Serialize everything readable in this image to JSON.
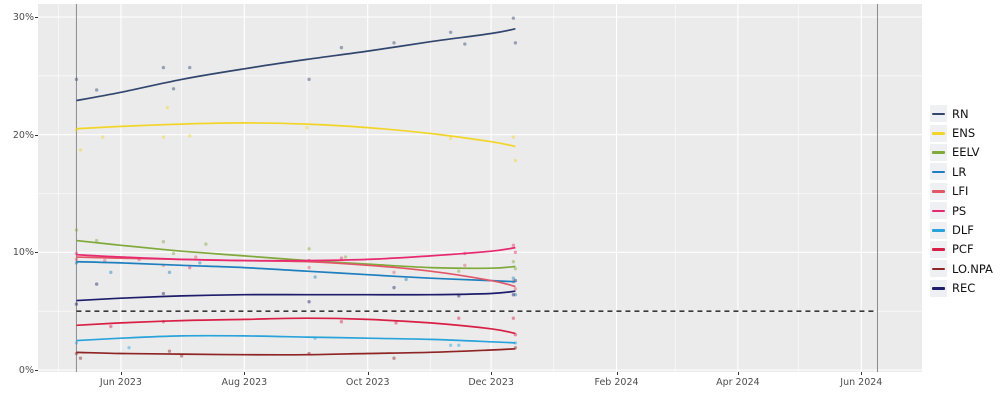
{
  "chart_data": {
    "type": "line",
    "title": "",
    "xlabel": "",
    "ylabel": "",
    "legend_position": "right",
    "panel_background": "#ebebeb",
    "grid": {
      "major_color": "#ffffff",
      "minor_color": "#ffffff",
      "major_y_values": [
        0,
        10,
        20,
        30
      ],
      "minor_y_values": [
        5,
        15,
        25
      ],
      "major_x_dates": [
        "2023-06-01",
        "2023-08-01",
        "2023-10-01",
        "2023-12-01",
        "2024-02-01",
        "2024-04-01",
        "2024-06-01"
      ],
      "minor_x_dates": [
        "2023-05-01",
        "2023-07-01",
        "2023-09-01",
        "2023-11-01",
        "2024-01-01",
        "2024-03-01",
        "2024-05-01"
      ]
    },
    "x_axis": {
      "domain": [
        "2023-04-21",
        "2024-07-01"
      ],
      "ticks": [
        {
          "label": "Jun 2023",
          "date": "2023-06-01"
        },
        {
          "label": "Aug 2023",
          "date": "2023-08-01"
        },
        {
          "label": "Oct 2023",
          "date": "2023-10-01"
        },
        {
          "label": "Dec 2023",
          "date": "2023-12-01"
        },
        {
          "label": "Feb 2024",
          "date": "2024-02-01"
        },
        {
          "label": "Apr 2024",
          "date": "2024-04-01"
        },
        {
          "label": "Jun 2024",
          "date": "2024-06-01"
        }
      ]
    },
    "y_axis": {
      "domain": [
        0,
        31
      ],
      "ticks": [
        {
          "label": "0%",
          "value": 0
        },
        {
          "label": "10%",
          "value": 10
        },
        {
          "label": "20%",
          "value": 20
        },
        {
          "label": "30%",
          "value": 30
        }
      ]
    },
    "threshold": {
      "value": 5,
      "color": "#3a3a3a",
      "style": "dashed",
      "from": "2023-05-10",
      "to": "2024-06-09"
    },
    "vlines": [
      {
        "name": "series-start-line",
        "date": "2023-05-10",
        "color": "#8c8c8c"
      },
      {
        "name": "election-day-line",
        "date": "2024-06-09",
        "color": "#8c8c8c"
      }
    ],
    "trend_dates": [
      "2023-05-10",
      "2023-06-01",
      "2023-07-01",
      "2023-08-01",
      "2023-09-01",
      "2023-10-01",
      "2023-11-01",
      "2023-12-01",
      "2023-12-13"
    ],
    "series": [
      {
        "name": "RN",
        "color": "#32466e",
        "trend": [
          22.9,
          23.6,
          24.7,
          25.6,
          26.4,
          27.1,
          27.9,
          28.6,
          29.0
        ],
        "points": [
          {
            "d": "2023-05-10",
            "v": 24.7
          },
          {
            "d": "2023-05-20",
            "v": 23.8
          },
          {
            "d": "2023-06-22",
            "v": 25.7
          },
          {
            "d": "2023-06-27",
            "v": 23.9
          },
          {
            "d": "2023-07-05",
            "v": 25.7
          },
          {
            "d": "2023-09-02",
            "v": 24.7
          },
          {
            "d": "2023-09-18",
            "v": 27.4
          },
          {
            "d": "2023-10-14",
            "v": 27.8
          },
          {
            "d": "2023-11-11",
            "v": 28.7
          },
          {
            "d": "2023-11-18",
            "v": 27.7
          },
          {
            "d": "2023-12-12",
            "v": 29.9
          },
          {
            "d": "2023-12-13",
            "v": 27.8
          }
        ]
      },
      {
        "name": "ENS",
        "color": "#f2d52a",
        "trend": [
          20.5,
          20.7,
          20.9,
          21.0,
          20.9,
          20.6,
          20.1,
          19.4,
          19.0
        ],
        "points": [
          {
            "d": "2023-05-10",
            "v": 20.4
          },
          {
            "d": "2023-05-12",
            "v": 18.7
          },
          {
            "d": "2023-05-23",
            "v": 19.8
          },
          {
            "d": "2023-06-22",
            "v": 19.8
          },
          {
            "d": "2023-06-24",
            "v": 22.3
          },
          {
            "d": "2023-07-05",
            "v": 19.9
          },
          {
            "d": "2023-09-01",
            "v": 20.6
          },
          {
            "d": "2023-11-11",
            "v": 19.7
          },
          {
            "d": "2023-12-12",
            "v": 19.8
          },
          {
            "d": "2023-12-13",
            "v": 17.8
          }
        ]
      },
      {
        "name": "EELV",
        "color": "#80a93c",
        "trend": [
          11.0,
          10.6,
          10.1,
          9.7,
          9.3,
          9.0,
          8.7,
          8.65,
          8.8
        ],
        "points": [
          {
            "d": "2023-05-10",
            "v": 11.9
          },
          {
            "d": "2023-05-20",
            "v": 11.0
          },
          {
            "d": "2023-06-22",
            "v": 10.9
          },
          {
            "d": "2023-06-27",
            "v": 9.9
          },
          {
            "d": "2023-07-13",
            "v": 10.7
          },
          {
            "d": "2023-09-02",
            "v": 10.3
          },
          {
            "d": "2023-09-20",
            "v": 9.6
          },
          {
            "d": "2023-11-15",
            "v": 8.4
          },
          {
            "d": "2023-12-12",
            "v": 9.2
          },
          {
            "d": "2023-12-13",
            "v": 8.6
          }
        ]
      },
      {
        "name": "LR",
        "color": "#1f7fbe",
        "trend": [
          9.2,
          9.1,
          8.9,
          8.7,
          8.4,
          8.1,
          7.8,
          7.6,
          7.5
        ],
        "points": [
          {
            "d": "2023-05-10",
            "v": 9.1
          },
          {
            "d": "2023-05-27",
            "v": 8.3
          },
          {
            "d": "2023-06-25",
            "v": 8.3
          },
          {
            "d": "2023-07-10",
            "v": 9.1
          },
          {
            "d": "2023-09-05",
            "v": 7.9
          },
          {
            "d": "2023-10-20",
            "v": 7.7
          },
          {
            "d": "2023-12-12",
            "v": 7.8
          },
          {
            "d": "2023-12-13",
            "v": 6.4
          }
        ]
      },
      {
        "name": "LFI",
        "color": "#e25768",
        "trend": [
          9.6,
          9.5,
          9.4,
          9.3,
          9.2,
          8.9,
          8.4,
          7.6,
          7.1
        ],
        "points": [
          {
            "d": "2023-05-10",
            "v": 9.4
          },
          {
            "d": "2023-05-24",
            "v": 9.3
          },
          {
            "d": "2023-06-22",
            "v": 8.9
          },
          {
            "d": "2023-07-08",
            "v": 9.6
          },
          {
            "d": "2023-09-02",
            "v": 8.7
          },
          {
            "d": "2023-10-14",
            "v": 8.3
          },
          {
            "d": "2023-11-18",
            "v": 8.9
          },
          {
            "d": "2023-12-12",
            "v": 7.5
          },
          {
            "d": "2023-12-13",
            "v": 6.9
          }
        ]
      },
      {
        "name": "PS",
        "color": "#e72a6f",
        "trend": [
          9.8,
          9.6,
          9.4,
          9.3,
          9.3,
          9.4,
          9.7,
          10.1,
          10.4
        ],
        "points": [
          {
            "d": "2023-05-10",
            "v": 9.9
          },
          {
            "d": "2023-06-10",
            "v": 9.4
          },
          {
            "d": "2023-07-05",
            "v": 8.7
          },
          {
            "d": "2023-09-02",
            "v": 9.3
          },
          {
            "d": "2023-09-18",
            "v": 9.5
          },
          {
            "d": "2023-11-18",
            "v": 9.9
          },
          {
            "d": "2023-12-12",
            "v": 10.6
          },
          {
            "d": "2023-12-13",
            "v": 10.0
          }
        ]
      },
      {
        "name": "DLF",
        "color": "#2aa3db",
        "trend": [
          2.5,
          2.7,
          2.9,
          2.9,
          2.8,
          2.7,
          2.6,
          2.4,
          2.3
        ],
        "points": [
          {
            "d": "2023-05-10",
            "v": 2.3
          },
          {
            "d": "2023-06-05",
            "v": 1.9
          },
          {
            "d": "2023-09-05",
            "v": 2.7
          },
          {
            "d": "2023-11-11",
            "v": 2.1
          },
          {
            "d": "2023-11-15",
            "v": 2.1
          },
          {
            "d": "2023-12-13",
            "v": 2.3
          }
        ]
      },
      {
        "name": "PCF",
        "color": "#d81f45",
        "trend": [
          3.8,
          4.0,
          4.2,
          4.3,
          4.4,
          4.3,
          4.0,
          3.5,
          3.1
        ],
        "points": [
          {
            "d": "2023-05-27",
            "v": 3.7
          },
          {
            "d": "2023-06-22",
            "v": 4.1
          },
          {
            "d": "2023-09-18",
            "v": 4.1
          },
          {
            "d": "2023-10-15",
            "v": 4.0
          },
          {
            "d": "2023-11-15",
            "v": 4.4
          },
          {
            "d": "2023-12-12",
            "v": 4.4
          },
          {
            "d": "2023-12-13",
            "v": 3.0
          }
        ]
      },
      {
        "name": "LO.NPA",
        "color": "#8e2423",
        "trend": [
          1.5,
          1.4,
          1.35,
          1.3,
          1.3,
          1.4,
          1.5,
          1.7,
          1.8
        ],
        "points": [
          {
            "d": "2023-05-10",
            "v": 1.4
          },
          {
            "d": "2023-05-12",
            "v": 1.0
          },
          {
            "d": "2023-06-25",
            "v": 1.6
          },
          {
            "d": "2023-07-01",
            "v": 1.2
          },
          {
            "d": "2023-09-02",
            "v": 1.4
          },
          {
            "d": "2023-10-14",
            "v": 1.0
          },
          {
            "d": "2023-12-13",
            "v": 1.9
          }
        ]
      },
      {
        "name": "REC",
        "color": "#1d1d6b",
        "trend": [
          5.9,
          6.1,
          6.3,
          6.4,
          6.4,
          6.4,
          6.4,
          6.5,
          6.7
        ],
        "points": [
          {
            "d": "2023-05-10",
            "v": 5.6
          },
          {
            "d": "2023-05-20",
            "v": 7.3
          },
          {
            "d": "2023-06-22",
            "v": 6.5
          },
          {
            "d": "2023-09-02",
            "v": 5.8
          },
          {
            "d": "2023-10-14",
            "v": 7.0
          },
          {
            "d": "2023-11-15",
            "v": 6.3
          },
          {
            "d": "2023-12-12",
            "v": 6.4
          },
          {
            "d": "2023-12-13",
            "v": 7.6
          }
        ]
      }
    ]
  }
}
